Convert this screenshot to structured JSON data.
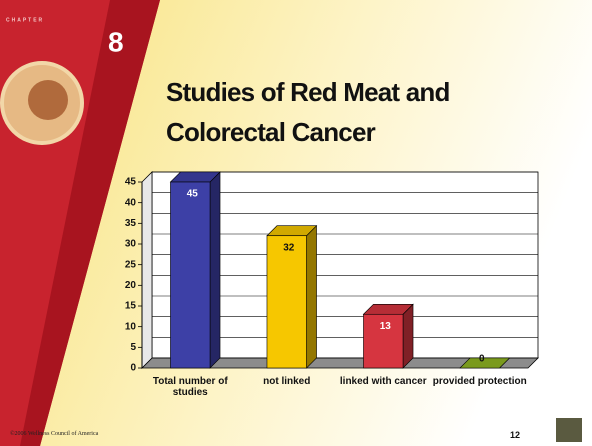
{
  "slide": {
    "chapter_label": "CHAPTER",
    "chapter_number": "8",
    "footer": "©2006 Wellness Council of America",
    "page_number": "12"
  },
  "chart_data": {
    "type": "bar3d",
    "title": "Studies of Red Meat and Colorectal Cancer",
    "categories": [
      "Total number of studies",
      "not linked",
      "linked with cancer",
      "provided protection"
    ],
    "values": [
      45,
      32,
      13,
      0
    ],
    "colors": [
      "#3d40a6",
      "#f6c700",
      "#d63540",
      "#8fb522"
    ],
    "ylim": [
      0,
      45
    ],
    "yticks": [
      0,
      5,
      10,
      15,
      20,
      25,
      30,
      35,
      40,
      45
    ],
    "grid": true
  }
}
